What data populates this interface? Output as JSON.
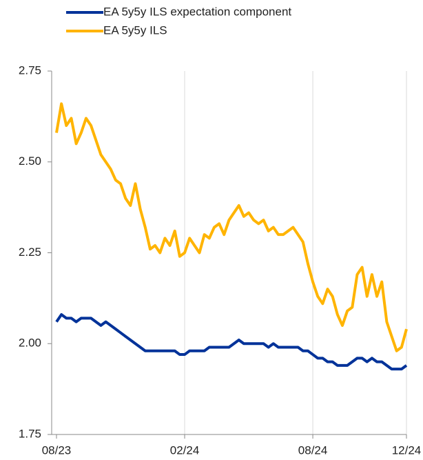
{
  "chart_data": {
    "type": "line",
    "categories": [
      "08/23",
      null,
      null,
      null,
      null,
      null,
      null,
      null,
      null,
      null,
      null,
      null,
      null,
      null,
      null,
      null,
      null,
      null,
      null,
      null,
      null,
      null,
      null,
      null,
      null,
      null,
      "02/24",
      null,
      null,
      null,
      null,
      null,
      null,
      null,
      null,
      null,
      null,
      null,
      null,
      null,
      null,
      null,
      null,
      null,
      null,
      null,
      null,
      null,
      null,
      null,
      null,
      null,
      "08/24",
      null,
      null,
      null,
      null,
      null,
      null,
      null,
      null,
      null,
      null,
      null,
      null,
      null,
      null,
      null,
      null,
      null,
      null,
      "12/24"
    ],
    "series": [
      {
        "name": "EA 5y5y ILS expectation component",
        "color": "#003299",
        "values": [
          2.06,
          2.08,
          2.07,
          2.07,
          2.06,
          2.07,
          2.07,
          2.07,
          2.06,
          2.05,
          2.06,
          2.05,
          2.04,
          2.03,
          2.02,
          2.01,
          2.0,
          1.99,
          1.98,
          1.98,
          1.98,
          1.98,
          1.98,
          1.98,
          1.98,
          1.97,
          1.97,
          1.98,
          1.98,
          1.98,
          1.98,
          1.99,
          1.99,
          1.99,
          1.99,
          1.99,
          2.0,
          2.01,
          2.0,
          2.0,
          2.0,
          2.0,
          2.0,
          1.99,
          2.0,
          1.99,
          1.99,
          1.99,
          1.99,
          1.99,
          1.98,
          1.98,
          1.97,
          1.96,
          1.96,
          1.95,
          1.95,
          1.94,
          1.94,
          1.94,
          1.95,
          1.96,
          1.96,
          1.95,
          1.96,
          1.95,
          1.95,
          1.94,
          1.93,
          1.93,
          1.93,
          1.94
        ]
      },
      {
        "name": "EA 5y5y ILS",
        "color": "#FFB400",
        "values": [
          2.58,
          2.66,
          2.6,
          2.62,
          2.55,
          2.58,
          2.62,
          2.6,
          2.56,
          2.52,
          2.5,
          2.48,
          2.45,
          2.44,
          2.4,
          2.38,
          2.44,
          2.37,
          2.32,
          2.26,
          2.27,
          2.25,
          2.29,
          2.27,
          2.31,
          2.24,
          2.25,
          2.29,
          2.27,
          2.25,
          2.3,
          2.29,
          2.32,
          2.33,
          2.3,
          2.34,
          2.36,
          2.38,
          2.35,
          2.36,
          2.34,
          2.33,
          2.34,
          2.31,
          2.32,
          2.3,
          2.3,
          2.31,
          2.32,
          2.3,
          2.28,
          2.22,
          2.17,
          2.13,
          2.11,
          2.15,
          2.13,
          2.08,
          2.05,
          2.09,
          2.1,
          2.19,
          2.21,
          2.13,
          2.19,
          2.13,
          2.17,
          2.06,
          2.02,
          1.98,
          1.99,
          2.04
        ]
      }
    ],
    "ylim": [
      1.75,
      2.75
    ],
    "yticks": [
      {
        "value": 1.75,
        "label": "1.75"
      },
      {
        "value": 2.0,
        "label": "2.00"
      },
      {
        "value": 2.25,
        "label": "2.25"
      },
      {
        "value": 2.5,
        "label": "2.50"
      },
      {
        "value": 2.75,
        "label": "2.75"
      }
    ],
    "grid": true
  }
}
